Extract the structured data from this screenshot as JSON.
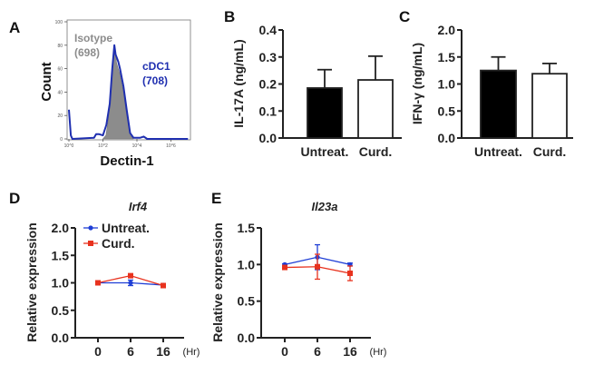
{
  "colors": {
    "untreated": "#1f3fd6",
    "curdlan": "#e8321e",
    "isotype": "#8c8c8c",
    "cdc1": "#1f2fb0",
    "bar_untreated": "#000000",
    "bar_curdlan": "#ffffff"
  },
  "chart_data": [
    {
      "panel": "A",
      "type": "area",
      "xlabel": "Dectin-1",
      "ylabel": "Count",
      "xscale": "log",
      "xlim": [
        1,
        10000000
      ],
      "ylim": [
        0,
        100
      ],
      "xticks": [
        "10^0",
        "10^2",
        "10^4",
        "10^6"
      ],
      "xtick_values": [
        1,
        100,
        10000,
        1000000
      ],
      "yticks": [
        0,
        20,
        40,
        60,
        80,
        100
      ],
      "series": [
        {
          "name": "Isotype",
          "label2": "(698)",
          "points": [
            [
              100,
              0
            ],
            [
              150,
              3
            ],
            [
              200,
              15
            ],
            [
              300,
              40
            ],
            [
              355,
              55
            ],
            [
              470,
              78
            ],
            [
              560,
              72
            ],
            [
              630,
              65
            ],
            [
              1000,
              55
            ],
            [
              1600,
              40
            ],
            [
              2500,
              20
            ],
            [
              4000,
              3
            ],
            [
              6300,
              0
            ]
          ]
        },
        {
          "name": "cDC1",
          "label2": "(708)",
          "points": [
            [
              1,
              25
            ],
            [
              1.3,
              3
            ],
            [
              1.6,
              0
            ],
            [
              30,
              1
            ],
            [
              40,
              4
            ],
            [
              60,
              4
            ],
            [
              100,
              3
            ],
            [
              160,
              12
            ],
            [
              250,
              30
            ],
            [
              355,
              60
            ],
            [
              470,
              80
            ],
            [
              560,
              72
            ],
            [
              630,
              70
            ],
            [
              800,
              66
            ],
            [
              1000,
              60
            ],
            [
              1600,
              45
            ],
            [
              2500,
              25
            ],
            [
              4000,
              5
            ],
            [
              6300,
              1
            ],
            [
              15800,
              1
            ],
            [
              25100,
              2
            ],
            [
              40000,
              0
            ],
            [
              10000000,
              0
            ]
          ]
        }
      ]
    },
    {
      "panel": "B",
      "type": "bar",
      "categories": [
        "Untreat.",
        "Curd."
      ],
      "values": [
        0.185,
        0.215
      ],
      "errors": [
        0.068,
        0.088
      ],
      "ylabel": "IL-17A (ng/mL)",
      "ylim": [
        0,
        0.4
      ],
      "yticks": [
        "0.0",
        "0.1",
        "0.2",
        "0.3",
        "0.4"
      ]
    },
    {
      "panel": "C",
      "type": "bar",
      "categories": [
        "Untreat.",
        "Curd."
      ],
      "values": [
        1.25,
        1.19
      ],
      "errors": [
        0.25,
        0.19
      ],
      "ylabel": "IFN-γ (ng/mL)",
      "ylim": [
        0,
        2.0
      ],
      "yticks": [
        "0.0",
        "0.5",
        "1.0",
        "1.5",
        "2.0"
      ]
    },
    {
      "panel": "D",
      "type": "line",
      "title": "Irf4",
      "x": [
        "0",
        "6",
        "16"
      ],
      "xunit": "(Hr)",
      "ylabel": "Relative expression",
      "ylim": [
        0,
        2.0
      ],
      "yticks": [
        "0.0",
        "0.5",
        "1.0",
        "1.5",
        "2.0"
      ],
      "legend": "top-left",
      "series": [
        {
          "name": "Untreat.",
          "values": [
            1.0,
            1.0,
            0.96
          ],
          "errors": [
            0.01,
            0.05,
            0.02
          ]
        },
        {
          "name": "Curd.",
          "values": [
            1.0,
            1.13,
            0.95
          ],
          "errors": [
            0.01,
            0.03,
            0.02
          ]
        }
      ]
    },
    {
      "panel": "E",
      "type": "line",
      "title": "Il23a",
      "x": [
        "0",
        "6",
        "16"
      ],
      "xunit": "(Hr)",
      "ylabel": "Relative expression",
      "ylim": [
        0,
        1.5
      ],
      "yticks": [
        "0.0",
        "0.5",
        "1.0",
        "1.5"
      ],
      "series": [
        {
          "name": "Untreat.",
          "values": [
            1.0,
            1.1,
            1.0
          ],
          "errors": [
            0.01,
            0.17,
            0.02
          ]
        },
        {
          "name": "Curd.",
          "values": [
            0.96,
            0.97,
            0.88
          ],
          "errors": [
            0.01,
            0.17,
            0.1
          ]
        }
      ]
    }
  ]
}
